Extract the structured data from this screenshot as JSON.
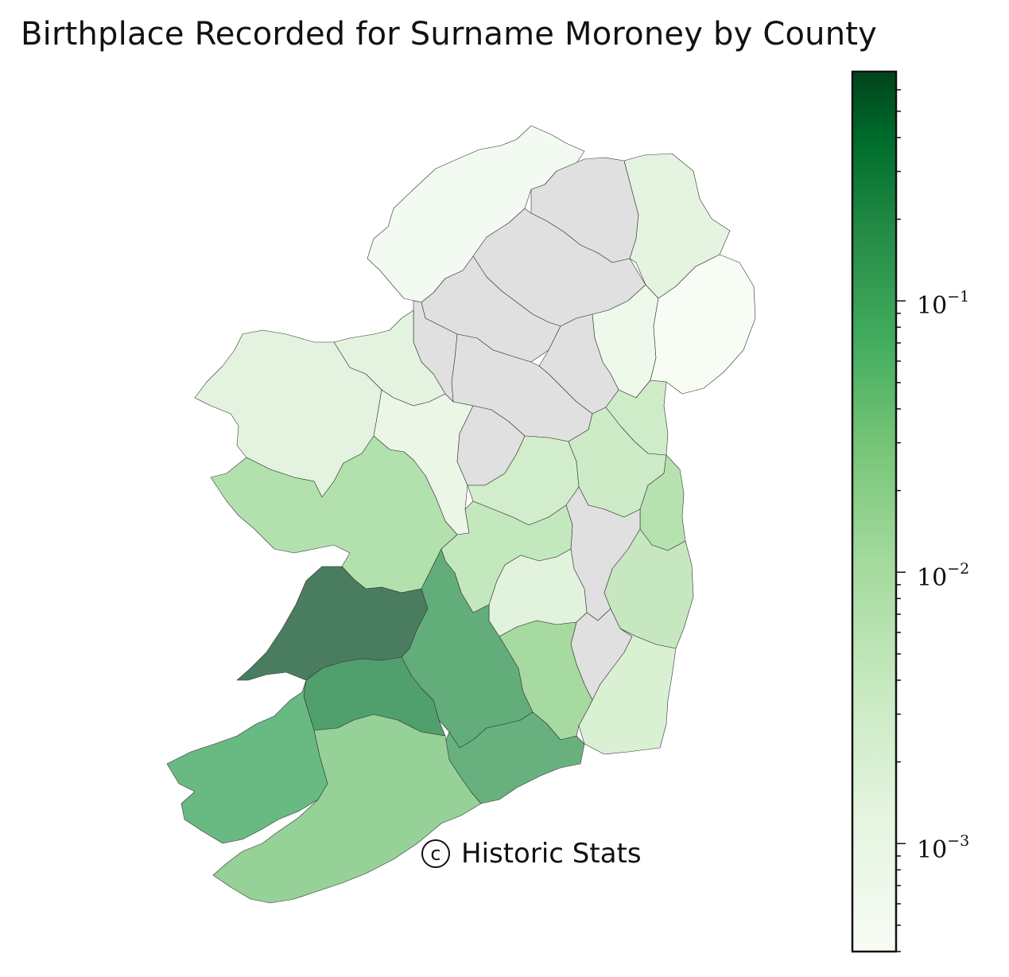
{
  "title": "Birthplace Recorded for Surname Moroney by County",
  "credit": "Historic Stats",
  "colorbar": {
    "scale": "log",
    "colormap": "Greens",
    "range": [
      0.0004,
      0.7
    ],
    "ticks": [
      {
        "base": "10",
        "exp": "−1"
      },
      {
        "base": "10",
        "exp": "−2"
      },
      {
        "base": "10",
        "exp": "−3"
      }
    ],
    "top_color": "#00441b",
    "bottom_color": "#f7fcf5"
  },
  "colors": {
    "no_data": "#e0e0e0",
    "border": "#333333"
  },
  "counties": [
    {
      "name": "Clare",
      "color": "#4a7d60"
    },
    {
      "name": "Limerick",
      "color": "#4fa06c"
    },
    {
      "name": "Tipperary",
      "color": "#63ad7a"
    },
    {
      "name": "Kerry",
      "color": "#69b983"
    },
    {
      "name": "Waterford",
      "color": "#68b17f"
    },
    {
      "name": "Cork",
      "color": "#96d197"
    },
    {
      "name": "Kilkenny",
      "color": "#a6daa0"
    },
    {
      "name": "Galway",
      "color": "#b3e1ae"
    },
    {
      "name": "Offaly",
      "color": "#c4e8bd"
    },
    {
      "name": "Mayo",
      "color": "#e3f3df"
    },
    {
      "name": "Roscommon",
      "color": "#ebf6e7"
    },
    {
      "name": "Westmeath",
      "color": "#d2edcb"
    },
    {
      "name": "Meath",
      "color": "#cdebc6"
    },
    {
      "name": "Dublin",
      "color": "#b6e2b0"
    },
    {
      "name": "Wicklow",
      "color": "#c6e7bf"
    },
    {
      "name": "Wexford",
      "color": "#d9f0d3"
    },
    {
      "name": "Laois",
      "color": "#e2f3dd"
    },
    {
      "name": "Louth",
      "color": "#cfecc8"
    },
    {
      "name": "Armagh",
      "color": "#eef8eb"
    },
    {
      "name": "Down",
      "color": "#f7fcf5"
    },
    {
      "name": "Antrim",
      "color": "#e4f4e0"
    },
    {
      "name": "Donegal",
      "color": "#f3faf1"
    },
    {
      "name": "Sligo",
      "color": "#e4f3df"
    },
    {
      "name": "Leitrim",
      "color": "#e0e0e0"
    },
    {
      "name": "Fermanagh",
      "color": "#e0e0e0"
    },
    {
      "name": "Tyrone",
      "color": "#e0e0e0"
    },
    {
      "name": "Londonderry",
      "color": "#e0e0e0"
    },
    {
      "name": "Cavan",
      "color": "#e0e0e0"
    },
    {
      "name": "Monaghan",
      "color": "#e0e0e0"
    },
    {
      "name": "Longford",
      "color": "#e0e0e0"
    },
    {
      "name": "Kildare",
      "color": "#e0e0e0"
    },
    {
      "name": "Carlow",
      "color": "#e0e0e0"
    }
  ]
}
